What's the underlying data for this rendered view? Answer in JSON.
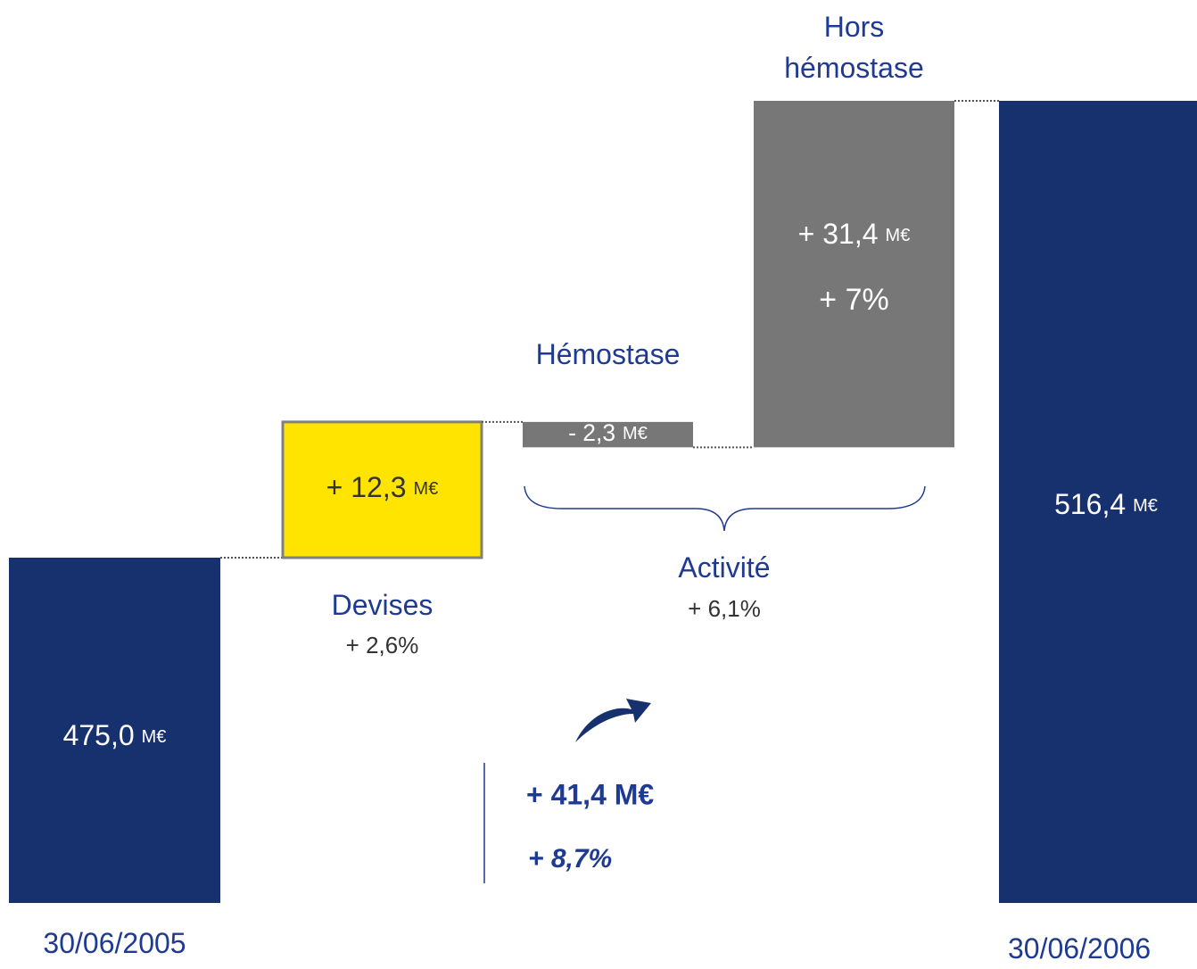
{
  "chart_data": {
    "type": "waterfall",
    "categories": [
      "30/06/2005",
      "Devises",
      "Hémostase",
      "Hors hémostase",
      "30/06/2006"
    ],
    "values": [
      475.0,
      12.3,
      -2.3,
      31.4,
      516.4
    ],
    "value_labels": [
      "475,0",
      "+ 12,3",
      "- 2,3",
      "+ 31,4",
      "516,4"
    ],
    "unit": "M€",
    "measure": [
      "absolute",
      "relative",
      "relative",
      "relative",
      "total"
    ],
    "colors": [
      "#17306e",
      "#ffe400",
      "#777777",
      "#777777",
      "#17306e"
    ],
    "sublabels": [
      null,
      "+ 2,6%",
      null,
      "+ 7%",
      null
    ],
    "group": {
      "label": "Activité",
      "sublabel": "+ 6,1%"
    },
    "summary": {
      "change": "+ 41,4 M€",
      "percent": "+ 8,7%"
    }
  }
}
